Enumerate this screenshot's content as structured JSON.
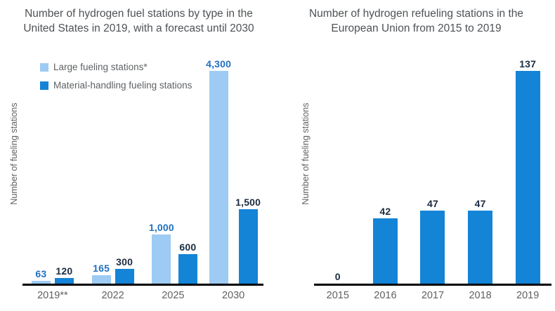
{
  "colors": {
    "light_blue_bar": "#9ECBF3",
    "dark_blue_bar": "#1484D6",
    "light_series_label": "#1F70C1",
    "dark_series_label": "#1B2B40",
    "title_text": "#4E5256",
    "axis_text": "#5E6164",
    "axis_line": "#000000"
  },
  "chart_data": [
    {
      "type": "bar",
      "title": "Number of hydrogen fuel stations by type in the United States in 2019, with a forecast until 2030",
      "ylabel": "Number of fueling stations",
      "xlabel": "",
      "categories": [
        "2019**",
        "2022",
        "2025",
        "2030"
      ],
      "series": [
        {
          "name": "Large fueling stations*",
          "values": [
            63,
            165,
            1000,
            4300
          ],
          "labels": [
            "63",
            "165",
            "1,000",
            "4,300"
          ],
          "bar_color": "#9ECBF3",
          "label_color": "#1F70C1"
        },
        {
          "name": "Material-handling fueling stations",
          "values": [
            120,
            300,
            600,
            1500
          ],
          "labels": [
            "120",
            "300",
            "600",
            "1,500"
          ],
          "bar_color": "#1484D6",
          "label_color": "#1B2B40"
        }
      ],
      "ylim": [
        0,
        4300
      ],
      "grid": false,
      "legend_position": "top-left",
      "value_labels_shown": true
    },
    {
      "type": "bar",
      "title": "Number of hydrogen refueling stations in the European Union from 2015 to 2019",
      "ylabel": "Number of fueling stations",
      "xlabel": "",
      "categories": [
        "2015",
        "2016",
        "2017",
        "2018",
        "2019"
      ],
      "series": [
        {
          "values": [
            0,
            42,
            47,
            47,
            137
          ],
          "labels": [
            "0",
            "42",
            "47",
            "47",
            "137"
          ],
          "bar_color": "#1484D6",
          "label_color": "#1B2B40"
        }
      ],
      "ylim": [
        0,
        137
      ],
      "grid": false,
      "legend_position": "none",
      "value_labels_shown": true
    }
  ]
}
